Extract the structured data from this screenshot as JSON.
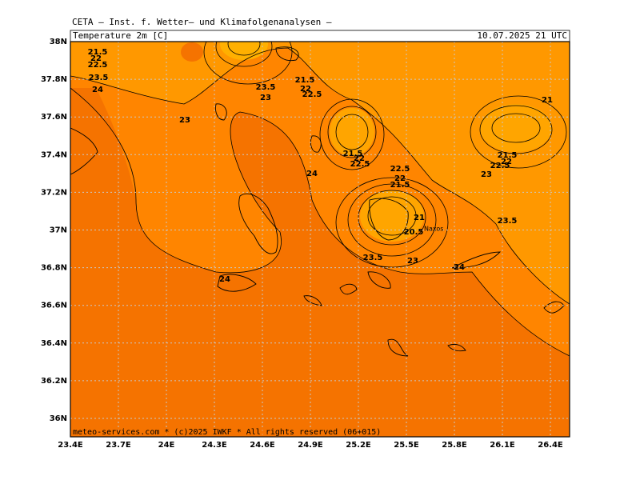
{
  "header": {
    "title": "CETA — Inst. f. Wetter— und Klimafolgenanalysen —",
    "variable": "Temperature 2m [C]",
    "valid_time": "10.07.2025 21 UTC",
    "footer": "meteo-services.com * (c)2025 IWKF * All rights reserved (06+015)"
  },
  "map": {
    "lat_ticks": [
      "38N",
      "37.8N",
      "37.6N",
      "37.4N",
      "37.2N",
      "37N",
      "36.8N",
      "36.6N",
      "36.4N",
      "36.2N",
      "36N"
    ],
    "lon_ticks": [
      "23.4E",
      "23.7E",
      "24E",
      "24.3E",
      "24.6E",
      "24.9E",
      "25.2E",
      "25.5E",
      "25.8E",
      "26.1E",
      "26.4E"
    ],
    "place_labels": [
      "Naxos"
    ],
    "contour_labels": [
      "21.5",
      "22",
      "22.5",
      "23.5",
      "24",
      "23",
      "23.5",
      "23",
      "21.5",
      "22",
      "22.5",
      "24",
      "21.5",
      "22",
      "22.5",
      "22.5",
      "22",
      "21.5",
      "21",
      "20.5",
      "23.5",
      "23",
      "24",
      "24",
      "21",
      "21.5",
      "22",
      "22.5",
      "23",
      "23.5"
    ]
  }
}
